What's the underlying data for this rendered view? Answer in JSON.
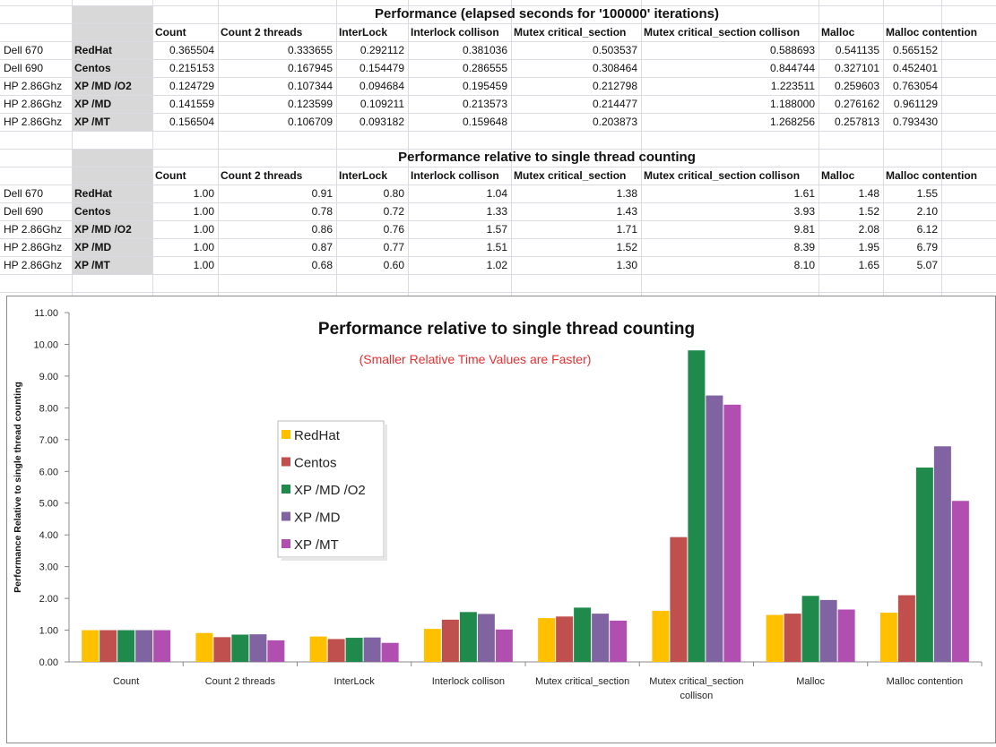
{
  "table1": {
    "title": "Performance (elapsed seconds for  '100000' iterations)",
    "headers": [
      "Count",
      "Count  2 threads",
      "InterLock",
      "Interlock collison",
      "Mutex critical_section",
      "Mutex critical_section collison",
      "Malloc",
      "Malloc contention"
    ],
    "rows": [
      {
        "machine": "Dell 670",
        "config": "RedHat",
        "values": [
          "0.365504",
          "0.333655",
          "0.292112",
          "0.381036",
          "0.503537",
          "0.588693",
          "0.541135",
          "0.565152"
        ]
      },
      {
        "machine": "Dell 690",
        "config": "Centos",
        "values": [
          "0.215153",
          "0.167945",
          "0.154479",
          "0.286555",
          "0.308464",
          "0.844744",
          "0.327101",
          "0.452401"
        ]
      },
      {
        "machine": "HP 2.86Ghz",
        "config": "XP /MD /O2",
        "values": [
          "0.124729",
          "0.107344",
          "0.094684",
          "0.195459",
          "0.212798",
          "1.223511",
          "0.259603",
          "0.763054"
        ]
      },
      {
        "machine": "HP 2.86Ghz",
        "config": "XP /MD",
        "values": [
          "0.141559",
          "0.123599",
          "0.109211",
          "0.213573",
          "0.214477",
          "1.188000",
          "0.276162",
          "0.961129"
        ]
      },
      {
        "machine": "HP 2.86Ghz",
        "config": "XP /MT",
        "values": [
          "0.156504",
          "0.106709",
          "0.093182",
          "0.159648",
          "0.203873",
          "1.268256",
          "0.257813",
          "0.793430"
        ]
      }
    ]
  },
  "table2": {
    "title": "Performance relative to single thread counting",
    "headers": [
      "Count",
      "Count  2 threads",
      "InterLock",
      "Interlock collison",
      "Mutex critical_section",
      "Mutex critical_section collison",
      "Malloc",
      "Malloc contention"
    ],
    "rows": [
      {
        "machine": "Dell 670",
        "config": "RedHat",
        "values": [
          "1.00",
          "0.91",
          "0.80",
          "1.04",
          "1.38",
          "1.61",
          "1.48",
          "1.55"
        ]
      },
      {
        "machine": "Dell 690",
        "config": "Centos",
        "values": [
          "1.00",
          "0.78",
          "0.72",
          "1.33",
          "1.43",
          "3.93",
          "1.52",
          "2.10"
        ]
      },
      {
        "machine": "HP 2.86Ghz",
        "config": "XP /MD /O2",
        "values": [
          "1.00",
          "0.86",
          "0.76",
          "1.57",
          "1.71",
          "9.81",
          "2.08",
          "6.12"
        ]
      },
      {
        "machine": "HP 2.86Ghz",
        "config": "XP /MD",
        "values": [
          "1.00",
          "0.87",
          "0.77",
          "1.51",
          "1.52",
          "8.39",
          "1.95",
          "6.79"
        ]
      },
      {
        "machine": "HP 2.86Ghz",
        "config": "XP /MT",
        "values": [
          "1.00",
          "0.68",
          "0.60",
          "1.02",
          "1.30",
          "8.10",
          "1.65",
          "5.07"
        ]
      }
    ]
  },
  "chart_data": {
    "type": "bar",
    "title": "Performance relative to single thread counting",
    "subtitle": "(Smaller Relative Time Values are Faster)",
    "xlabel": "",
    "ylabel": "Performance Relative to single thread counting",
    "ylim": [
      0,
      11
    ],
    "yticks": [
      "0.00",
      "1.00",
      "2.00",
      "3.00",
      "4.00",
      "5.00",
      "6.00",
      "7.00",
      "8.00",
      "9.00",
      "10.00",
      "11.00"
    ],
    "grid": false,
    "legend_position": "left-middle",
    "categories": [
      "Count",
      "Count  2 threads",
      "InterLock",
      "Interlock collison",
      "Mutex critical_section",
      [
        "Mutex critical_section",
        "collison"
      ],
      "Malloc",
      "Malloc contention"
    ],
    "series": [
      {
        "name": "RedHat",
        "color": "#ffc000",
        "values": [
          1.0,
          0.91,
          0.8,
          1.04,
          1.38,
          1.61,
          1.48,
          1.55
        ]
      },
      {
        "name": "Centos",
        "color": "#c0504d",
        "values": [
          1.0,
          0.78,
          0.72,
          1.33,
          1.43,
          3.93,
          1.52,
          2.1
        ]
      },
      {
        "name": "XP /MD /O2",
        "color": "#1f8a4c",
        "values": [
          1.0,
          0.86,
          0.76,
          1.57,
          1.71,
          9.81,
          2.08,
          6.12
        ]
      },
      {
        "name": "XP /MD",
        "color": "#8064a2",
        "values": [
          1.0,
          0.87,
          0.77,
          1.51,
          1.52,
          8.39,
          1.95,
          6.79
        ]
      },
      {
        "name": "XP /MT",
        "color": "#b04fb0",
        "values": [
          1.0,
          0.68,
          0.6,
          1.02,
          1.3,
          8.1,
          1.65,
          5.07
        ]
      }
    ]
  }
}
